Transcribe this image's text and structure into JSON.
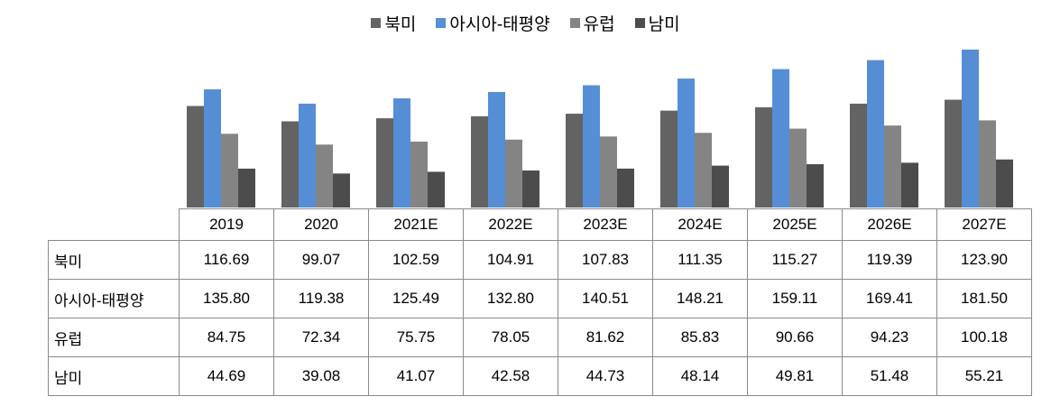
{
  "chart_data": {
    "type": "bar",
    "categories": [
      "2019",
      "2020",
      "2021E",
      "2022E",
      "2023E",
      "2024E",
      "2025E",
      "2026E",
      "2027E"
    ],
    "series": [
      {
        "name": "북미",
        "color": "#636363",
        "values": [
          116.69,
          99.07,
          102.59,
          104.91,
          107.83,
          111.35,
          115.27,
          119.39,
          123.9
        ]
      },
      {
        "name": "아시아-태평양",
        "color": "#558ed5",
        "values": [
          135.8,
          119.38,
          125.49,
          132.8,
          140.51,
          148.21,
          159.11,
          169.41,
          181.5
        ]
      },
      {
        "name": "유럽",
        "color": "#848484",
        "values": [
          84.75,
          72.34,
          75.75,
          78.05,
          81.62,
          85.83,
          90.66,
          94.23,
          100.18
        ]
      },
      {
        "name": "남미",
        "color": "#4c4c4c",
        "values": [
          44.69,
          39.08,
          41.07,
          42.58,
          44.73,
          48.14,
          49.81,
          51.48,
          55.21
        ]
      }
    ],
    "value_labels": [
      [
        "116.69",
        "99.07",
        "102.59",
        "104.91",
        "107.83",
        "111.35",
        "115.27",
        "119.39",
        "123.90"
      ],
      [
        "135.80",
        "119.38",
        "125.49",
        "132.80",
        "140.51",
        "148.21",
        "159.11",
        "169.41",
        "181.50"
      ],
      [
        "84.75",
        "72.34",
        "75.75",
        "78.05",
        "81.62",
        "85.83",
        "90.66",
        "94.23",
        "100.18"
      ],
      [
        "44.69",
        "39.08",
        "41.07",
        "42.58",
        "44.73",
        "48.14",
        "49.81",
        "51.48",
        "55.21"
      ]
    ],
    "ylim": [
      0,
      181.5
    ],
    "grid": false,
    "legend": "top",
    "data_table": true
  }
}
